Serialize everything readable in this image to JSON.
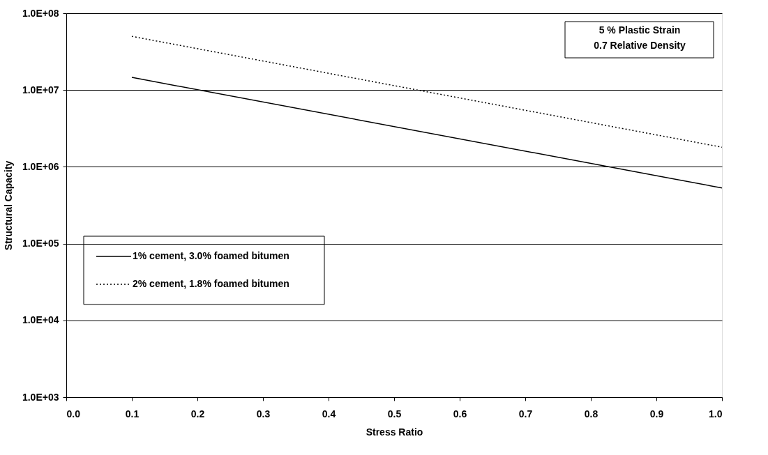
{
  "chart_data": {
    "type": "line",
    "xlabel": "Stress Ratio",
    "ylabel": "Structural Capacity",
    "x": [
      0.1,
      1.0
    ],
    "series": [
      {
        "name": "1% cement, 3.0% foamed bitumen",
        "color": "#000000",
        "line_style": "solid",
        "values": [
          14600000,
          530000
        ]
      },
      {
        "name": "2% cement, 1.8% foamed bitumen",
        "color": "#000000",
        "line_style": "dotted",
        "values": [
          50000000,
          1800000
        ]
      }
    ],
    "log": "y",
    "xlim": [
      0.0,
      1.0
    ],
    "xticks": [
      {
        "value": 0.0,
        "label": "0.0"
      },
      0.1,
      0.2,
      0.3,
      0.4,
      0.5,
      0.6,
      0.7,
      0.8,
      0.9,
      {
        "value": 1.0,
        "label": "1.0"
      }
    ],
    "ylim": [
      1000,
      100000000
    ],
    "yticks": [
      {
        "value": 1000,
        "label": "1.0E+03"
      },
      {
        "value": 10000,
        "label": "1.0E+04"
      },
      {
        "value": 100000,
        "label": "1.0E+05"
      },
      {
        "value": 1000000,
        "label": "1.0E+06"
      },
      {
        "value": 10000000,
        "label": "1.0E+07"
      },
      {
        "value": 100000000,
        "label": "1.0E+08"
      }
    ],
    "grid": "y",
    "legend": "left",
    "marker": "none",
    "annotations": [
      "5 % Plastic Strain\n0.7 Relative Density"
    ]
  }
}
